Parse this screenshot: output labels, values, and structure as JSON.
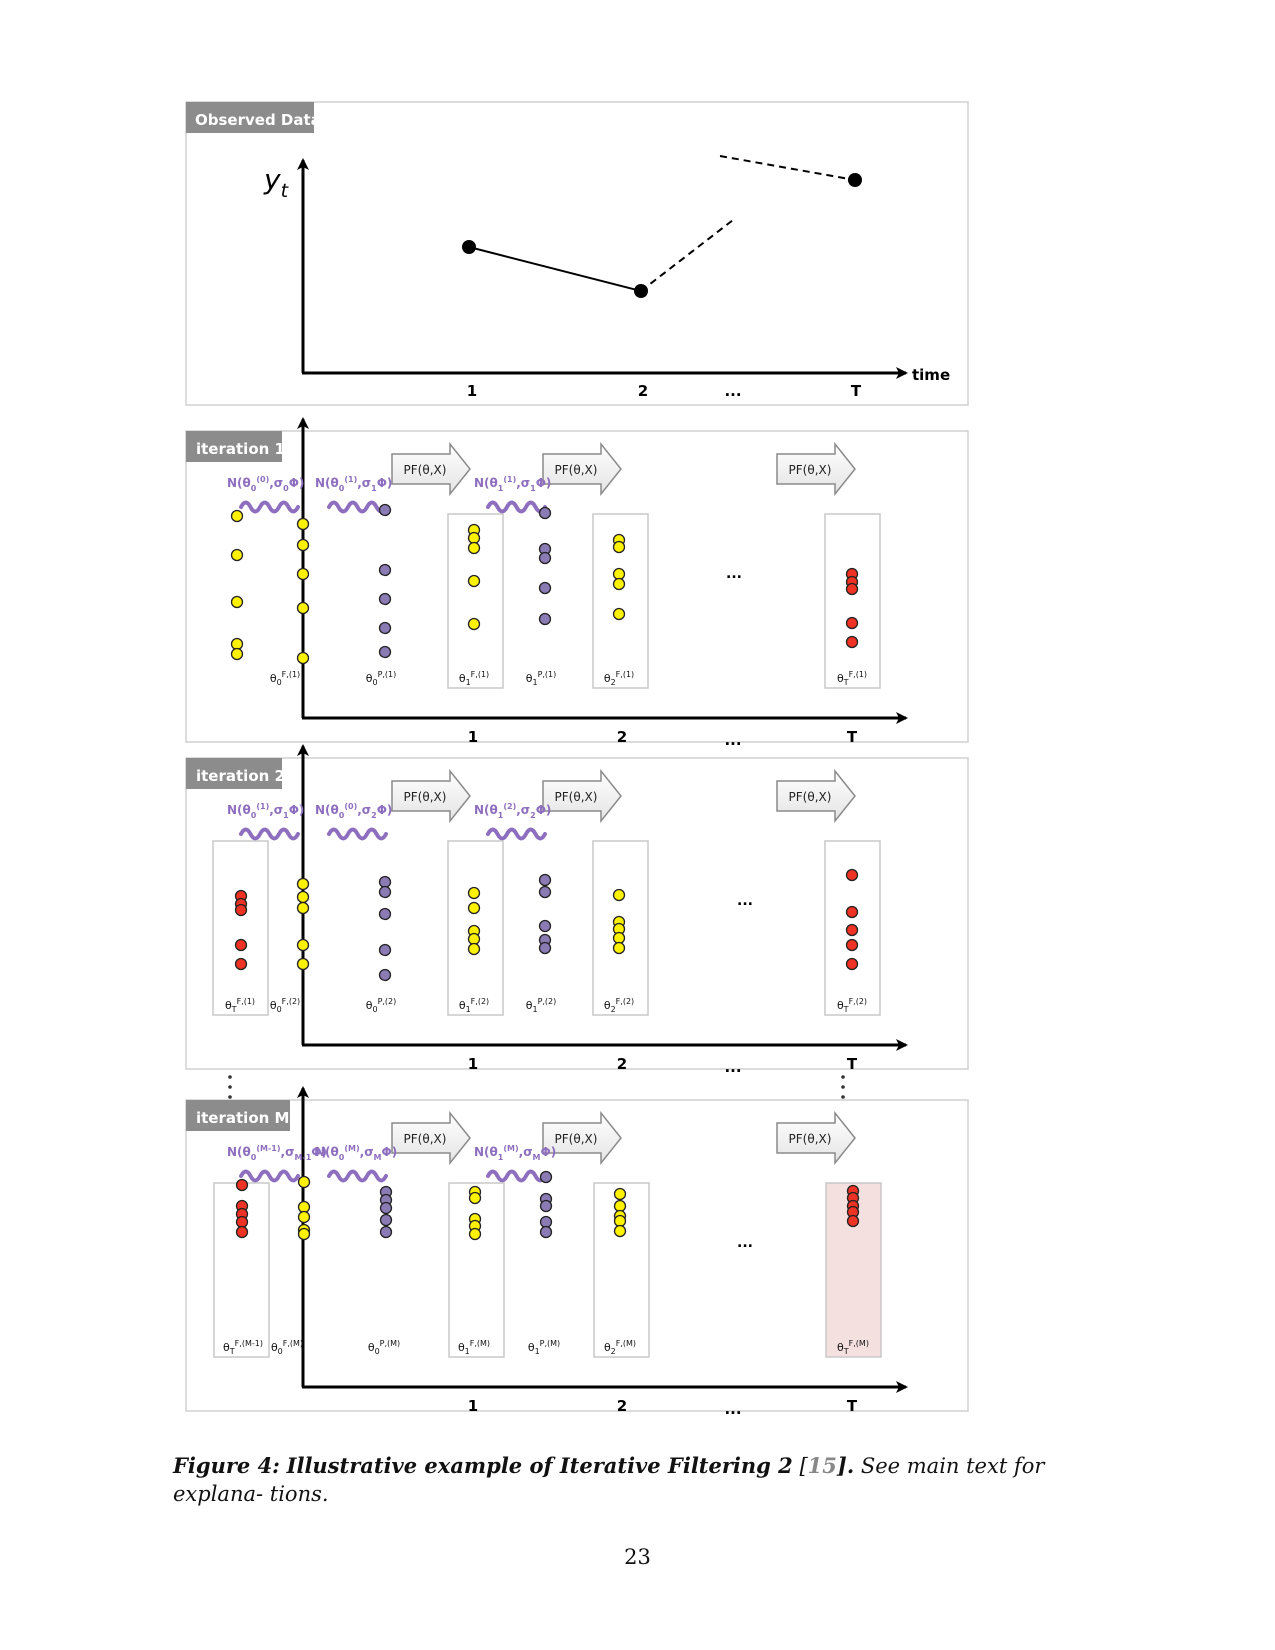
{
  "figure": {
    "observed": {
      "title": "Observed Data",
      "ylabel": "y",
      "ylabel_sub": "t",
      "xlabel": "time",
      "ticks": [
        "1",
        "2",
        "...",
        "T"
      ]
    },
    "panels": [
      {
        "title": "iteration 1",
        "ticks": [
          "1",
          "2",
          "...",
          "T"
        ],
        "pf_label": "PF(θ,X)",
        "mid_dots": "...",
        "rw": [
          {
            "main": "N(θ",
            "sub": "0",
            "sup": "(0)",
            "rest": ",σ",
            "sub2": "0",
            "end": "Φ)"
          },
          {
            "main": "N(θ",
            "sub": "0",
            "sup": "(1)",
            "rest": ",σ",
            "sub2": "1",
            "end": "Φ)"
          },
          {
            "main": "N(θ",
            "sub": "1",
            "sup": "(1)",
            "rest": ",σ",
            "sub2": "1",
            "end": "Φ)"
          }
        ],
        "col_labels": [
          {
            "base": "θ",
            "sub": "0",
            "sup": "F,(1)"
          },
          {
            "base": "θ",
            "sub": "0",
            "sup": "P,(1)"
          },
          {
            "base": "θ",
            "sub": "1",
            "sup": "F,(1)"
          },
          {
            "base": "θ",
            "sub": "1",
            "sup": "P,(1)"
          },
          {
            "base": "θ",
            "sub": "2",
            "sup": "F,(1)"
          },
          {
            "base": "θ",
            "sub": "T",
            "sup": "F,(1)"
          }
        ]
      },
      {
        "title": "iteration 2",
        "ticks": [
          "1",
          "2",
          "...",
          "T"
        ],
        "pf_label": "PF(θ,X)",
        "mid_dots": "...",
        "rw": [
          {
            "main": "N(θ",
            "sub": "0",
            "sup": "(1)",
            "rest": ",σ",
            "sub2": "1",
            "end": "Φ)"
          },
          {
            "main": "N(θ",
            "sub": "0",
            "sup": "(0)",
            "rest": ",σ",
            "sub2": "2",
            "end": "Φ)"
          },
          {
            "main": "N(θ",
            "sub": "1",
            "sup": "(2)",
            "rest": ",σ",
            "sub2": "2",
            "end": "Φ)"
          }
        ],
        "col_labels": [
          {
            "base": "θ",
            "sub": "T",
            "sup": "F,(1)"
          },
          {
            "base": "θ",
            "sub": "0",
            "sup": "F,(2)"
          },
          {
            "base": "θ",
            "sub": "0",
            "sup": "P,(2)"
          },
          {
            "base": "θ",
            "sub": "1",
            "sup": "F,(2)"
          },
          {
            "base": "θ",
            "sub": "1",
            "sup": "P,(2)"
          },
          {
            "base": "θ",
            "sub": "2",
            "sup": "F,(2)"
          },
          {
            "base": "θ",
            "sub": "T",
            "sup": "F,(2)"
          }
        ]
      },
      {
        "title": "iteration M",
        "ticks": [
          "1",
          "2",
          "...",
          "T"
        ],
        "pf_label": "PF(θ,X)",
        "mid_dots": "...",
        "rw": [
          {
            "main": "N(θ",
            "sub": "0",
            "sup": "(M-1)",
            "rest": ",σ",
            "sub2": "M-1",
            "end": "Φ)"
          },
          {
            "main": "N(θ",
            "sub": "0",
            "sup": "(M)",
            "rest": ",σ",
            "sub2": "M",
            "end": "Φ)"
          },
          {
            "main": "N(θ",
            "sub": "1",
            "sup": "(M)",
            "rest": ",σ",
            "sub2": "M",
            "end": "Φ)"
          }
        ],
        "col_labels": [
          {
            "base": "θ",
            "sub": "T",
            "sup": "F,(M-1)"
          },
          {
            "base": "θ",
            "sub": "0",
            "sup": "F,(M)"
          },
          {
            "base": "θ",
            "sub": "0",
            "sup": "P,(M)"
          },
          {
            "base": "θ",
            "sub": "1",
            "sup": "F,(M)"
          },
          {
            "base": "θ",
            "sub": "1",
            "sup": "P,(M)"
          },
          {
            "base": "θ",
            "sub": "2",
            "sup": "F,(M)"
          },
          {
            "base": "θ",
            "sub": "T",
            "sup": "F,(M)"
          }
        ]
      }
    ],
    "colors": {
      "yellow": "#fff200",
      "purple": "#8b7bb5",
      "red": "#ee3224",
      "label_purple": "#8e6fbf",
      "tab_gray": "#8c8c8c",
      "highlight": "#f5e0e0"
    }
  },
  "caption": {
    "label": "Figure 4:",
    "title": "Illustrative example of Iterative Filtering 2",
    "ref_open": "[",
    "ref": "15",
    "ref_close": "].",
    "rest": "See main text for explana- tions."
  },
  "page_number": "23"
}
